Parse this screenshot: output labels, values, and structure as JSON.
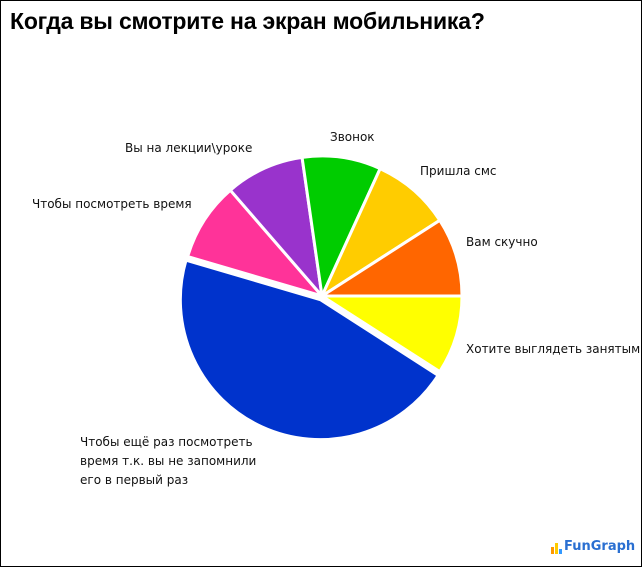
{
  "title": "Когда вы смотрите на экран мобильника?",
  "logo": {
    "text": "FunGraph"
  },
  "chart_data": {
    "type": "pie",
    "title": "Когда вы смотрите на экран мобильника?",
    "categories": [
      "Хотите выглядеть занятым",
      "Чтобы ещё раз посмотреть время т.к. вы не запомнили его в первый раз",
      "Чтобы посмотреть время",
      "Вы на лекции\\уроке",
      "Звонок",
      "Пришла смс",
      "Вам скучно"
    ],
    "values": [
      10,
      50,
      10,
      10,
      10,
      10,
      10
    ],
    "colors": [
      "#ffff00",
      "#0033cc",
      "#ff3399",
      "#9933cc",
      "#00cc00",
      "#ffcc00",
      "#ff6600"
    ],
    "start_angle_deg": 0,
    "direction": "clockwise",
    "legend": "none (direct labels)",
    "labels": {
      "busy": "Хотите выглядеть занятым",
      "again_line1": "Чтобы ещё раз посмотреть",
      "again_line2": "время т.к. вы не запомнили",
      "again_line3": "его в первый раз",
      "time": "Чтобы посмотреть время",
      "lecture": "Вы на лекции\\уроке",
      "call": "Звонок",
      "sms": "Пришла смс",
      "bored": "Вам скучно"
    }
  }
}
